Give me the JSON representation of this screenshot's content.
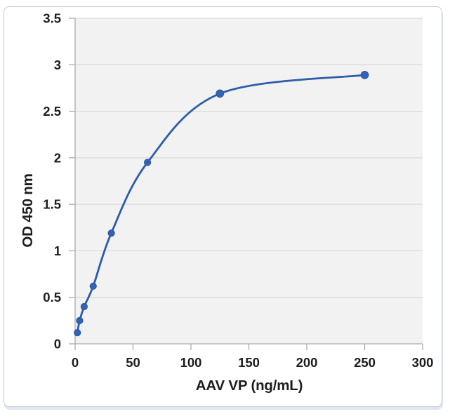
{
  "window": {
    "background": "#ffffff",
    "card_border_color": "#c6cbd3"
  },
  "chart_data": {
    "type": "line",
    "title": "",
    "xlabel": "AAV VP (ng/mL)",
    "ylabel": "OD 450 nm",
    "x": [
      1.95,
      3.9,
      7.8,
      15.6,
      31.25,
      62.5,
      125,
      250
    ],
    "y": [
      0.12,
      0.25,
      0.4,
      0.62,
      1.19,
      1.95,
      2.69,
      2.89
    ],
    "xlim": [
      0,
      300
    ],
    "ylim": [
      0,
      3.5
    ],
    "x_ticks": [
      0,
      50,
      100,
      150,
      200,
      250,
      300
    ],
    "y_ticks": [
      0,
      0.5,
      1,
      1.5,
      2,
      2.5,
      3,
      3.5
    ],
    "grid": "horizontal-only",
    "legend": "none",
    "smooth": true,
    "line_color": "#2E5CA8",
    "marker_color": "#3263B2",
    "marker_stroke": "#2B56A0",
    "plot_bg": "#F2F2F2",
    "gridline_color": "#D9D9D9",
    "axis_color": "#ABABAB",
    "label_color": "#1d1d1d"
  }
}
